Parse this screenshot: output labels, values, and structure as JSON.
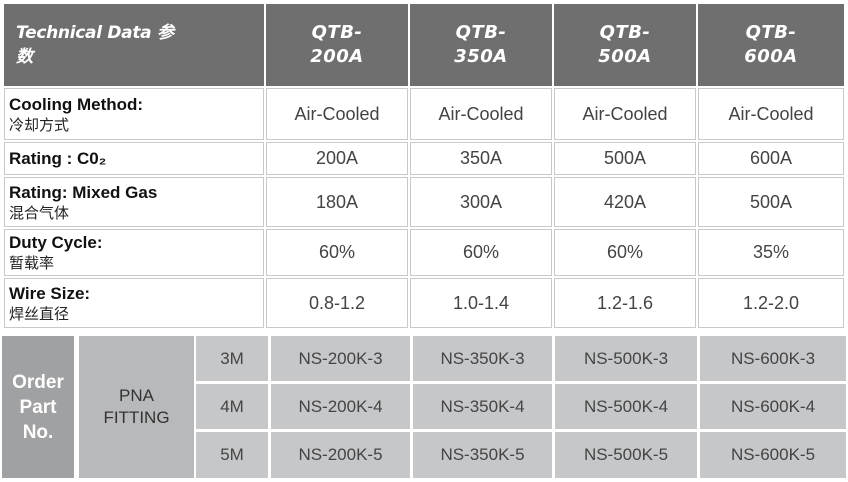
{
  "header": {
    "label_en": "Technical Data 参",
    "label_zh": "数",
    "models": [
      {
        "line1": "QTB-",
        "line2": "200A"
      },
      {
        "line1": "QTB-",
        "line2": "350A"
      },
      {
        "line1": "QTB-",
        "line2": "500A"
      },
      {
        "line1": "QTB-",
        "line2": "600A"
      }
    ]
  },
  "rows": [
    {
      "label_en": "Cooling Method:",
      "label_zh": "冷却方式",
      "values": [
        "Air-Cooled",
        "Air-Cooled",
        "Air-Cooled",
        "Air-Cooled"
      ]
    },
    {
      "label_en": "Rating : C0₂",
      "label_zh": "",
      "values": [
        "200A",
        "350A",
        "500A",
        "600A"
      ]
    },
    {
      "label_en": "Rating: Mixed Gas",
      "label_zh": "混合气体",
      "values": [
        "180A",
        "300A",
        "420A",
        "500A"
      ]
    },
    {
      "label_en": "Duty Cycle:",
      "label_zh": "暂载率",
      "values": [
        "60%",
        "60%",
        "60%",
        "35%"
      ]
    },
    {
      "label_en": "Wire Size:",
      "label_zh": "焊丝直径",
      "values": [
        "0.8-1.2",
        "1.0-1.4",
        "1.2-1.6",
        "1.2-2.0"
      ]
    }
  ],
  "order": {
    "label_lines": [
      "Order",
      "Part",
      "No."
    ],
    "fitting_lines": [
      "PNA",
      "FITTING"
    ],
    "rows": [
      {
        "length": "3M",
        "parts": [
          "NS-200K-3",
          "NS-350K-3",
          "NS-500K-3",
          "NS-600K-3"
        ]
      },
      {
        "length": "4M",
        "parts": [
          "NS-200K-4",
          "NS-350K-4",
          "NS-500K-4",
          "NS-600K-4"
        ]
      },
      {
        "length": "5M",
        "parts": [
          "NS-200K-5",
          "NS-350K-5",
          "NS-500K-5",
          "NS-600K-5"
        ]
      }
    ]
  }
}
